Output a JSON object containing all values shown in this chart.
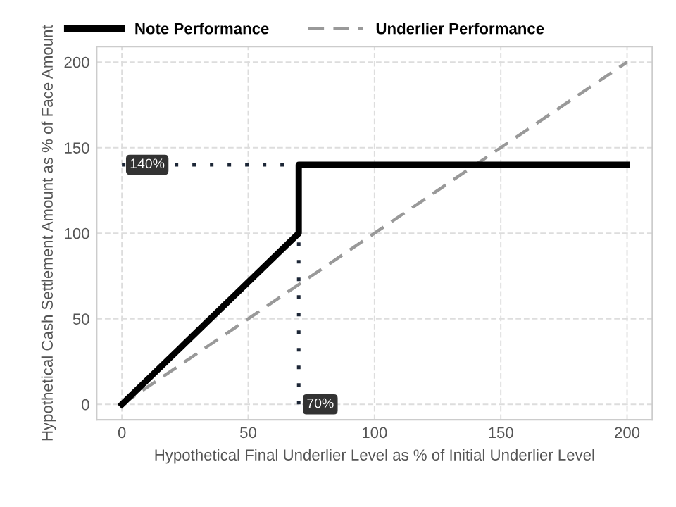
{
  "chart_data": {
    "type": "line",
    "xlabel": "Hypothetical Final Underlier Level as % of Initial Underlier Level",
    "ylabel": "Hypothetical Cash Settlement Amount as % of Face Amount",
    "xlim": [
      -10,
      210
    ],
    "xticks": [
      0,
      50,
      100,
      150,
      200
    ],
    "ylim": [
      -9,
      209
    ],
    "yticks": [
      0,
      50,
      100,
      150,
      200
    ],
    "grid": true,
    "legend": "top",
    "marker": "none",
    "series": [
      {
        "name": "Note Performance",
        "color": "#000000",
        "line_style": "solid",
        "x": [
          0,
          70,
          70,
          200
        ],
        "values": [
          0,
          100,
          140,
          140
        ]
      },
      {
        "name": "Underlier Performance",
        "color": "#999999",
        "line_style": "dashed",
        "x": [
          0,
          200
        ],
        "values": [
          0,
          200
        ]
      },
      {
        "color": "#1c2636",
        "line_style": "dotted",
        "x": [
          0,
          70
        ],
        "values": [
          140,
          140
        ]
      },
      {
        "color": "#1c2636",
        "line_style": "dotted",
        "x": [
          70,
          70
        ],
        "values": [
          0,
          140
        ]
      }
    ],
    "annotations": [
      {
        "text": "140%",
        "x": 0,
        "y": 140
      },
      {
        "text": "70%",
        "x": 70,
        "y": 0
      }
    ]
  }
}
